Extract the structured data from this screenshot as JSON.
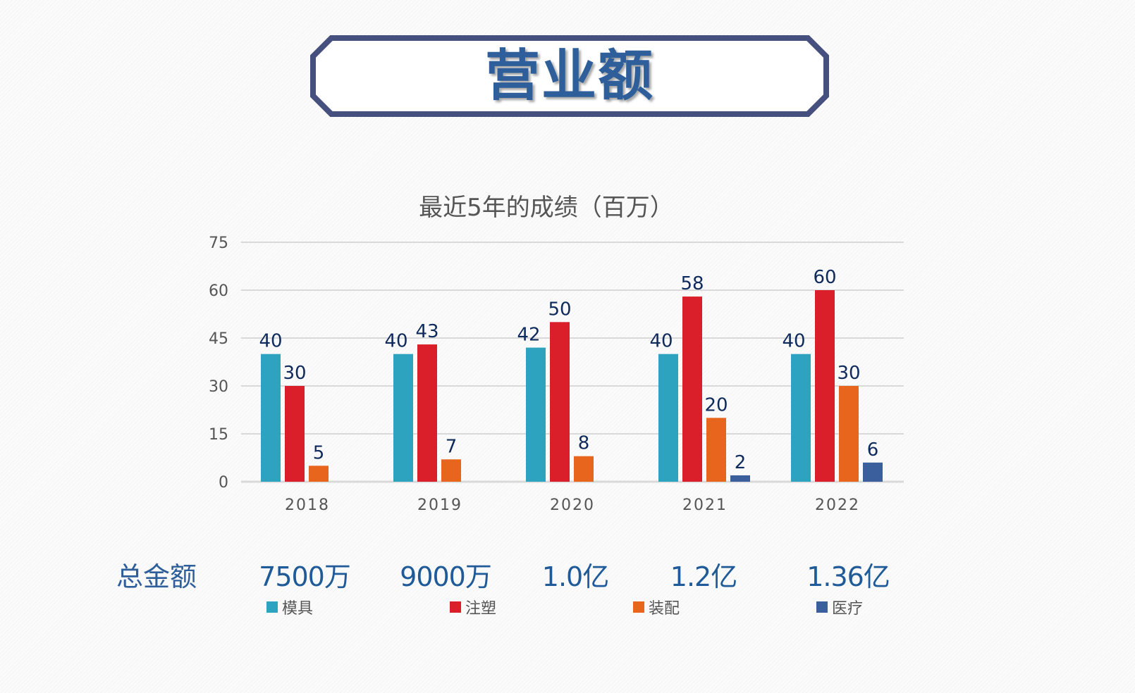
{
  "header": {
    "title": "营业额"
  },
  "chart_data": {
    "type": "bar",
    "title": "最近5年的成绩（百万）",
    "categories": [
      "2018",
      "2019",
      "2020",
      "2021",
      "2022"
    ],
    "series": [
      {
        "name": "模具",
        "color": "#2ea3bf",
        "values": [
          40,
          40,
          42,
          40,
          40
        ]
      },
      {
        "name": "注塑",
        "color": "#da1f2b",
        "values": [
          30,
          43,
          50,
          58,
          60
        ]
      },
      {
        "name": "装配",
        "color": "#e8651e",
        "values": [
          5,
          7,
          8,
          20,
          30
        ]
      },
      {
        "name": "医疗",
        "color": "#3a5f9c",
        "values": [
          null,
          null,
          null,
          2,
          6
        ]
      }
    ],
    "ylim": [
      0,
      75
    ],
    "yticks": [
      0,
      15,
      30,
      45,
      60,
      75
    ],
    "grid": true,
    "data_label_color": "#0f2a5c",
    "legend_position": "bottom"
  },
  "totals": {
    "label": "总金额",
    "values": [
      "7500万",
      "9000万",
      "1.0亿",
      "1.2亿",
      "1.36亿"
    ]
  }
}
